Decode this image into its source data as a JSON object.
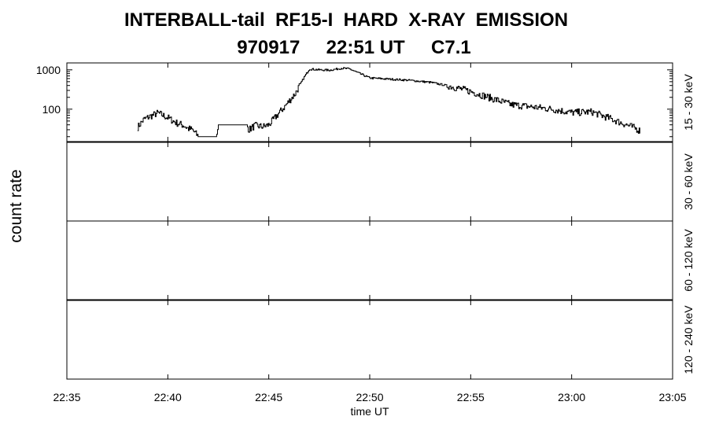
{
  "title_line1": "INTERBALL-tail  RF15-I  HARD  X-RAY  EMISSION",
  "title_line2": "970917     22:51 UT     C7.1",
  "chart_data": {
    "type": "line",
    "ylabel": "count rate",
    "xlabel": "time UT",
    "x_tick_labels": [
      "22:35",
      "22:40",
      "22:45",
      "22:50",
      "22:55",
      "23:00",
      "23:05"
    ],
    "x_range_minutes_after_2235": [
      0,
      30
    ],
    "panels": [
      {
        "label": "15 - 30 keV",
        "yscale": "log",
        "ylim": [
          15,
          1500
        ],
        "y_tick_labels": [
          "100",
          "1000"
        ],
        "series": {
          "x_time": [
            "22:38.5",
            "22:38.8",
            "22:39.1",
            "22:39.5",
            "22:40.0",
            "22:40.4",
            "22:40.8",
            "22:41.0",
            "22:41.2",
            "22:41.5",
            "22:42.0",
            "22:42.4",
            "22:42.5",
            "22:43.0",
            "22:43.5",
            "22:43.9",
            "22:44.0",
            "22:44.3",
            "22:44.7",
            "22:45.0",
            "22:45.4",
            "22:45.8",
            "22:46.3",
            "22:46.7",
            "22:47.0",
            "22:47.5",
            "22:48.0",
            "22:48.6",
            "22:49.0",
            "22:49.5",
            "22:50.0",
            "22:51.0",
            "22:52.0",
            "22:53.0",
            "22:54.0",
            "22:55.0",
            "22:56.0",
            "22:57.0",
            "22:58.0",
            "22:59.0",
            "23:00.0",
            "23:01.0",
            "23:02.0",
            "23:03.0",
            "23:03.4"
          ],
          "y": [
            35,
            55,
            65,
            80,
            60,
            45,
            38,
            32,
            30,
            20,
            20,
            20,
            40,
            40,
            40,
            40,
            30,
            38,
            36,
            40,
            70,
            120,
            250,
            600,
            1050,
            1000,
            980,
            1100,
            1050,
            800,
            620,
            580,
            540,
            480,
            380,
            280,
            190,
            130,
            115,
            100,
            82,
            85,
            55,
            35,
            28
          ]
        }
      },
      {
        "label": "30 - 60 keV"
      },
      {
        "label": "60 - 120 keV"
      },
      {
        "label": "120 - 240 keV"
      }
    ]
  }
}
